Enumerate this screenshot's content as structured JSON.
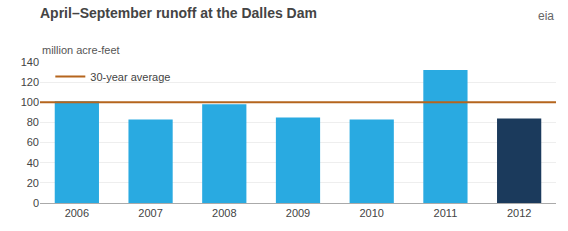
{
  "chart_data": {
    "type": "bar",
    "title": "April–September runoff at the Dalles Dam",
    "subtitle": "million acre-feet",
    "categories": [
      "2006",
      "2007",
      "2008",
      "2009",
      "2010",
      "2011",
      "2012"
    ],
    "values": [
      101,
      83,
      98,
      85,
      83,
      132,
      84
    ],
    "colors": [
      "#29aae1",
      "#29aae1",
      "#29aae1",
      "#29aae1",
      "#29aae1",
      "#29aae1",
      "#1b3a5c"
    ],
    "average_line": {
      "name": "30-year average",
      "value": 100,
      "color": "#b5651d"
    },
    "ylim": [
      0,
      140
    ],
    "yticks": [
      0,
      20,
      40,
      60,
      80,
      100,
      120,
      140
    ],
    "grid": true,
    "legend": "upper left",
    "annotations": [
      "eia"
    ]
  }
}
